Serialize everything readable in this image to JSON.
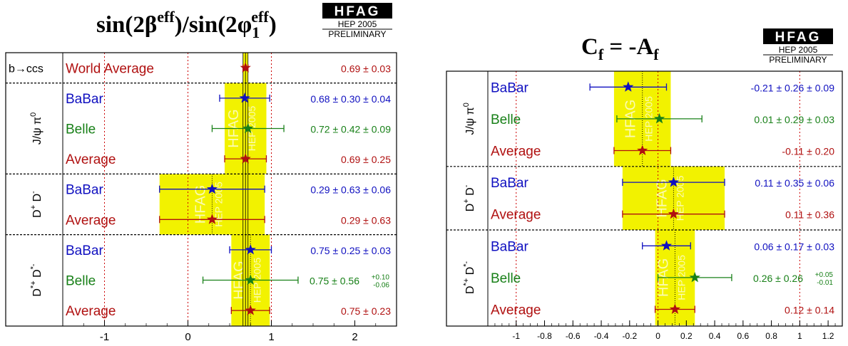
{
  "chart_data": [
    {
      "type": "scatter",
      "title": {
        "text": "sin(2β",
        "sup1": "eff",
        "mid": ")/sin(2φ",
        "sub": "1",
        "sup2": "eff",
        "end": ")"
      },
      "logo": {
        "name": "HFAG",
        "conf": "HEP 2005",
        "status": "PRELIMINARY"
      },
      "watermark": {
        "name": "HFAG",
        "conf": "HEP 2005"
      },
      "xlim": [
        -1.5,
        2.5
      ],
      "xticks": [
        -1,
        0,
        1,
        2
      ],
      "x_tick_labels": [
        "-1",
        "0",
        "1",
        "2"
      ],
      "reference_lines": [
        -1,
        0,
        1
      ],
      "world_average": {
        "value": 0.69,
        "error": 0.03
      },
      "groups": [
        {
          "label": "b→ccs",
          "rows": 1
        },
        {
          "label_main": "J/ψ π",
          "label_sup": "0",
          "rows": 3
        },
        {
          "label_main": "D",
          "label_sup": "+",
          "label_main2": " D",
          "label_sup2": "-",
          "rows": 2
        },
        {
          "label_main": "D",
          "label_sup": "*+",
          "label_main2": " D",
          "label_sup2": "*-",
          "rows": 3
        }
      ],
      "rows": [
        {
          "name": "World Average",
          "value": 0.69,
          "err_low": 0.03,
          "err_high": 0.03,
          "text": "0.69 ± 0.03",
          "color": "#b01010"
        },
        {
          "name": "BaBar",
          "value": 0.68,
          "err_low": 0.3,
          "err_high": 0.3,
          "text": "0.68 ± 0.30 ± 0.04",
          "color": "#1010c0"
        },
        {
          "name": "Belle",
          "value": 0.72,
          "err_low": 0.43,
          "err_high": 0.43,
          "text": "0.72 ± 0.42 ± 0.09",
          "color": "#188018"
        },
        {
          "name": "Average",
          "value": 0.69,
          "err_low": 0.25,
          "err_high": 0.25,
          "text": "0.69 ± 0.25",
          "color": "#b01010",
          "band": true
        },
        {
          "name": "BaBar",
          "value": 0.29,
          "err_low": 0.63,
          "err_high": 0.63,
          "text": "0.29 ± 0.63 ± 0.06",
          "color": "#1010c0"
        },
        {
          "name": "Average",
          "value": 0.29,
          "err_low": 0.63,
          "err_high": 0.63,
          "text": "0.29 ± 0.63",
          "color": "#b01010",
          "band": true
        },
        {
          "name": "BaBar",
          "value": 0.75,
          "err_low": 0.25,
          "err_high": 0.25,
          "text": "0.75 ± 0.25 ± 0.03",
          "color": "#1010c0"
        },
        {
          "name": "Belle",
          "value": 0.75,
          "err_low": 0.57,
          "err_high": 0.57,
          "text": "0.75 ± 0.56",
          "text_sup": "+0.10",
          "text_sub": "-0.06",
          "color": "#188018"
        },
        {
          "name": "Average",
          "value": 0.75,
          "err_low": 0.23,
          "err_high": 0.23,
          "text": "0.75 ± 0.23",
          "color": "#b01010",
          "band": true
        }
      ]
    },
    {
      "type": "scatter",
      "title": {
        "text": "C",
        "sub": "f",
        "mid": " = -A",
        "sub2": "f"
      },
      "logo": {
        "name": "HFAG",
        "conf": "HEP 2005",
        "status": "PRELIMINARY"
      },
      "watermark": {
        "name": "HFAG",
        "conf": "HEP 2005"
      },
      "xlim": [
        -1.2,
        1.3
      ],
      "xticks": [
        -1,
        -0.8,
        -0.6,
        -0.4,
        -0.2,
        0,
        0.2,
        0.4,
        0.6,
        0.8,
        1,
        1.2
      ],
      "x_tick_labels": [
        "-1",
        "-0.8",
        "-0.6",
        "-0.4",
        "-0.2",
        "0",
        "0.2",
        "0.4",
        "0.6",
        "0.8",
        "1",
        "1.2"
      ],
      "reference_lines": [
        -1,
        0,
        1
      ],
      "groups": [
        {
          "label_main": "J/ψ π",
          "label_sup": "0",
          "rows": 3
        },
        {
          "label_main": "D",
          "label_sup": "+",
          "label_main2": " D",
          "label_sup2": "-",
          "rows": 2
        },
        {
          "label_main": "D",
          "label_sup": "*+",
          "label_main2": " D",
          "label_sup2": "*-",
          "rows": 3
        }
      ],
      "rows": [
        {
          "name": "BaBar",
          "value": -0.21,
          "err_low": 0.27,
          "err_high": 0.27,
          "text": "-0.21 ± 0.26 ± 0.09",
          "color": "#1010c0"
        },
        {
          "name": "Belle",
          "value": 0.01,
          "err_low": 0.3,
          "err_high": 0.3,
          "text": "0.01 ± 0.29 ± 0.03",
          "color": "#188018"
        },
        {
          "name": "Average",
          "value": -0.11,
          "err_low": 0.2,
          "err_high": 0.2,
          "text": "-0.11 ± 0.20",
          "color": "#b01010",
          "band": true
        },
        {
          "name": "BaBar",
          "value": 0.11,
          "err_low": 0.36,
          "err_high": 0.36,
          "text": "0.11 ± 0.35 ± 0.06",
          "color": "#1010c0"
        },
        {
          "name": "Average",
          "value": 0.11,
          "err_low": 0.36,
          "err_high": 0.36,
          "text": "0.11 ± 0.36",
          "color": "#b01010",
          "band": true
        },
        {
          "name": "BaBar",
          "value": 0.06,
          "err_low": 0.17,
          "err_high": 0.17,
          "text": "0.06 ± 0.17 ± 0.03",
          "color": "#1010c0"
        },
        {
          "name": "Belle",
          "value": 0.26,
          "err_low": 0.26,
          "err_high": 0.26,
          "text": "0.26 ± 0.26",
          "text_sup": "+0.05",
          "text_sub": "-0.01",
          "color": "#188018"
        },
        {
          "name": "Average",
          "value": 0.12,
          "err_low": 0.14,
          "err_high": 0.14,
          "text": "0.12 ± 0.14",
          "color": "#b01010",
          "band": true
        }
      ]
    }
  ]
}
